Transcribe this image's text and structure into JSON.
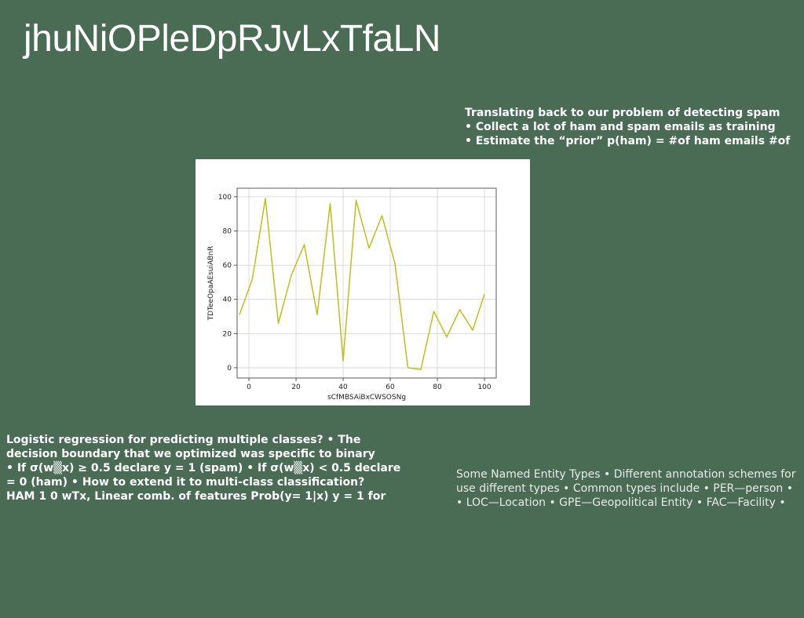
{
  "slide": {
    "title": "jhuNiOPleDpRJvLxTfaLN",
    "top_right_text": [
      "Translating back to our problem of detecting spam",
      "• Collect a lot of ham and spam emails as training",
      "• Estimate the “prior” p(ham) = #of ham emails #of"
    ],
    "bottom_left_text": [
      "Logistic regression for predicting multiple classes? • The",
      "decision boundary that we optimized was specific to binary",
      "• If σ(w▒x) ≥ 0.5 declare y = 1 (spam) • If σ(w▒x) < 0.5 declare",
      "= 0 (ham) • How to extend it to multi-class classification?",
      "HAM 1 0 wTx, Linear comb. of features Prob(y= 1|x) y = 1 for"
    ],
    "bottom_right_text": [
      "Some Named Entity Types • Different annotation schemes for",
      "use different types • Common types include • PER—person •",
      "• LOC—Location • GPE—Geopolitical Entity • FAC—Facility •"
    ]
  },
  "chart_data": {
    "type": "line",
    "xlabel": "sCfMBSAiBxCWSOSNg",
    "ylabel": "TDTeeOpaAEsuiABnR",
    "xlim": [
      -5,
      105
    ],
    "ylim": [
      -6,
      105
    ],
    "xticks": [
      0,
      20,
      40,
      60,
      80,
      100
    ],
    "yticks": [
      0,
      20,
      40,
      60,
      80,
      100
    ],
    "grid": true,
    "line_color": "#bfbf1c",
    "series": [
      {
        "x": [
          -4,
          1.5,
          7,
          12.5,
          18,
          23.5,
          29,
          34.5,
          40,
          45.5,
          51,
          56.5,
          62,
          67.5,
          73,
          78.5,
          84,
          89.5,
          95,
          100
        ],
        "values": [
          31,
          52,
          99,
          26,
          54,
          72,
          31,
          96,
          4,
          98,
          70,
          89,
          61,
          0,
          -1,
          33,
          18,
          34,
          22,
          43
        ]
      }
    ]
  }
}
